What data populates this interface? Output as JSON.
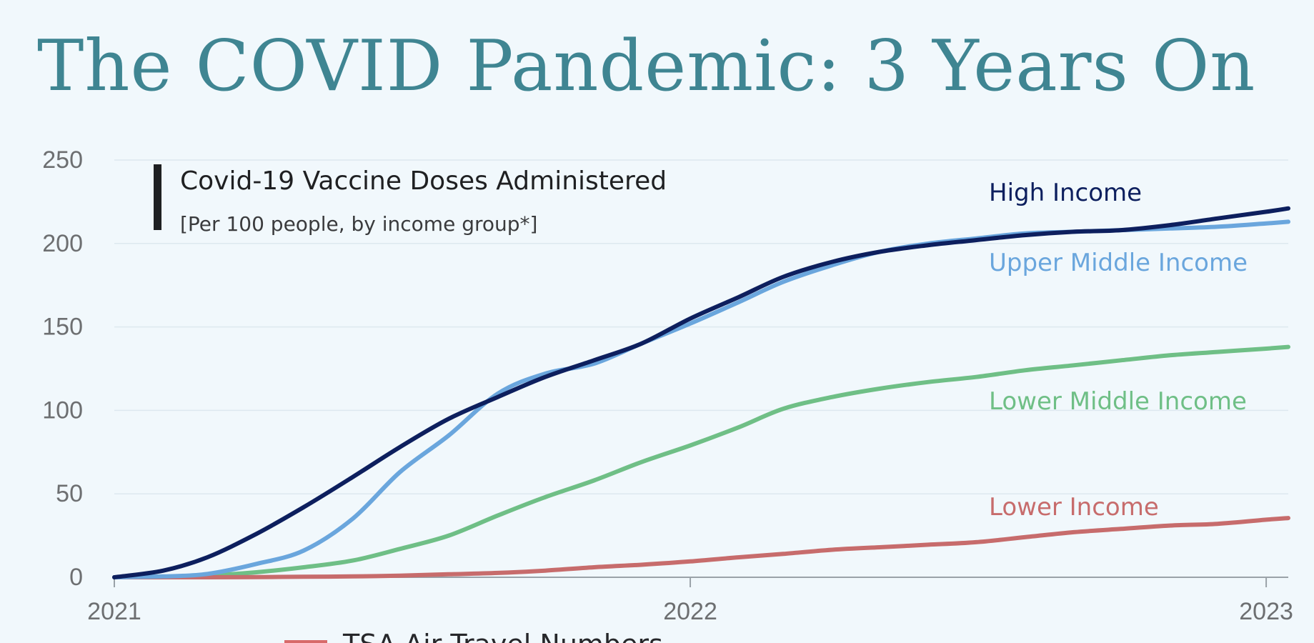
{
  "page_title": "The COVID Pandemic: 3 Years On",
  "bottom_note": "TSA Air Travel Numbers",
  "colors": {
    "background": "#f1f8fc",
    "title": "#3f8592",
    "high_income": "#0d1f5e",
    "upper_middle_income": "#6aa6dd",
    "lower_middle_income": "#6fbf86",
    "lower_income": "#c76c6c"
  },
  "chart_data": {
    "type": "line",
    "title": "Covid-19 Vaccine Doses Administered",
    "subtitle": "[Per 100 people, by income group*]",
    "xlabel": "",
    "ylabel": "",
    "x_ticks": [
      "2021",
      "2022",
      "2023"
    ],
    "y_ticks": [
      0,
      50,
      100,
      150,
      200,
      250
    ],
    "ylim": [
      0,
      250
    ],
    "xlim": [
      "2021-01-01",
      "2023-01-15"
    ],
    "grid": true,
    "legend": "inline labels at right",
    "x": [
      "2021-01-01",
      "2021-02-01",
      "2021-03-01",
      "2021-04-01",
      "2021-05-01",
      "2021-06-01",
      "2021-07-01",
      "2021-08-01",
      "2021-09-01",
      "2021-10-01",
      "2021-11-01",
      "2021-12-01",
      "2022-01-01",
      "2022-02-01",
      "2022-03-01",
      "2022-04-01",
      "2022-05-01",
      "2022-06-01",
      "2022-07-01",
      "2022-08-01",
      "2022-09-01",
      "2022-10-01",
      "2022-11-01",
      "2022-12-01",
      "2023-01-01",
      "2023-01-15"
    ],
    "series": [
      {
        "name": "High Income",
        "values": [
          0,
          4,
          12,
          26,
          42,
          60,
          78,
          95,
          108,
          120,
          130,
          140,
          155,
          168,
          180,
          189,
          195,
          199,
          202,
          205,
          207,
          208,
          211,
          215,
          219,
          221
        ]
      },
      {
        "name": "Upper Middle Income",
        "values": [
          0,
          0.5,
          2,
          8,
          16,
          35,
          63,
          85,
          110,
          122,
          128,
          140,
          152,
          165,
          177,
          187,
          195,
          200,
          203,
          206,
          207,
          208,
          209,
          210,
          212,
          213
        ]
      },
      {
        "name": "Lower Middle Income",
        "values": [
          0,
          0.3,
          1,
          3,
          6,
          10,
          17,
          25,
          37,
          48,
          58,
          69,
          79,
          90,
          101,
          108,
          113,
          117,
          120,
          124,
          127,
          130,
          133,
          135,
          137,
          138
        ]
      },
      {
        "name": "Lower Income",
        "values": [
          0,
          0,
          0,
          0.1,
          0.3,
          0.5,
          1,
          1.8,
          2.6,
          4,
          6,
          7.5,
          9.5,
          12,
          14,
          16.5,
          18,
          19.5,
          21,
          24,
          27,
          29,
          31,
          32,
          34.5,
          35.5
        ]
      }
    ]
  }
}
